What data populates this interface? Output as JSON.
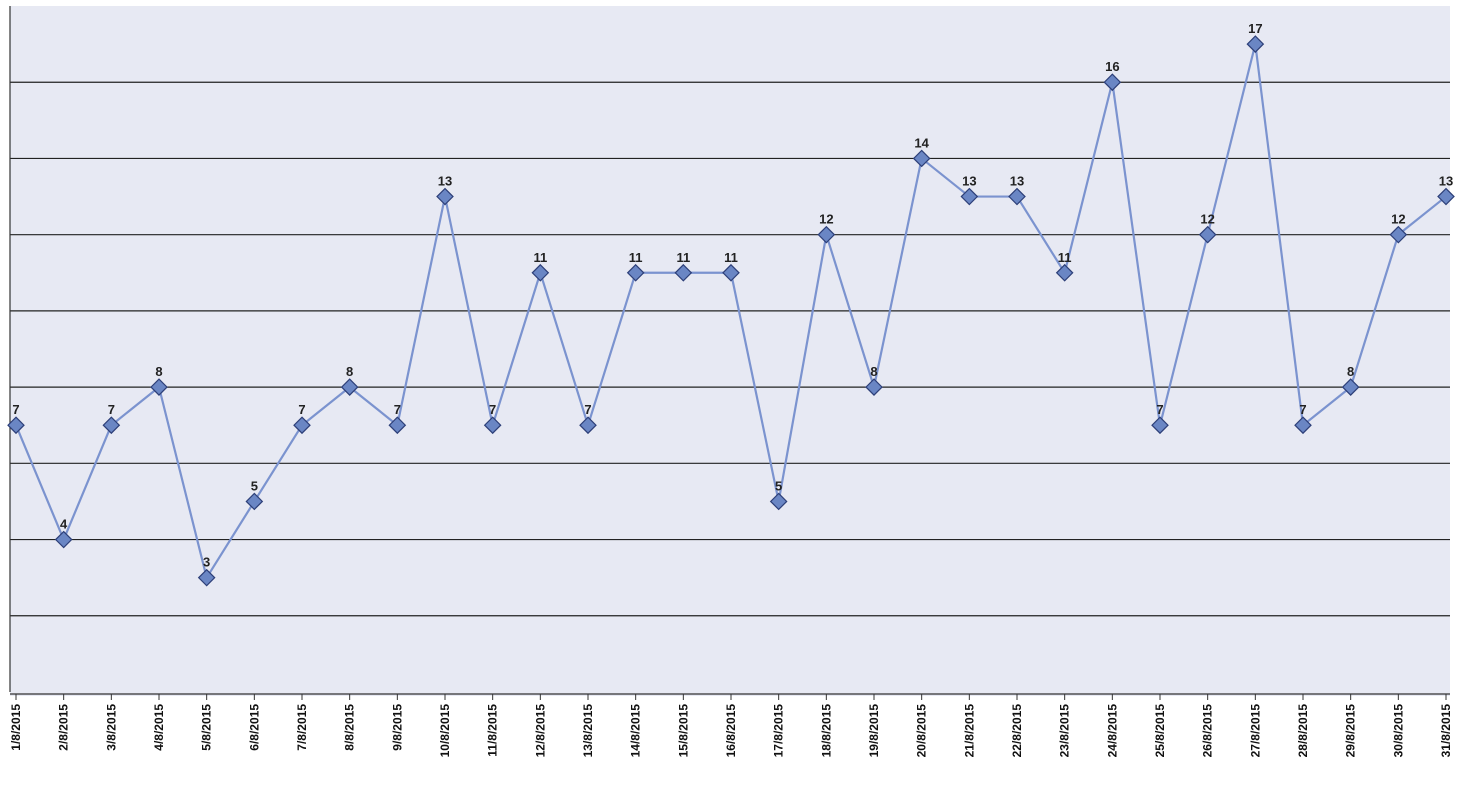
{
  "chart_data": {
    "type": "line",
    "title": "",
    "xlabel": "",
    "ylabel": "",
    "categories": [
      "1/8/2015",
      "2/8/2015",
      "3/8/2015",
      "4/8/2015",
      "5/8/2015",
      "6/8/2015",
      "7/8/2015",
      "8/8/2015",
      "9/8/2015",
      "10/8/2015",
      "11/8/2015",
      "12/8/2015",
      "13/8/2015",
      "14/8/2015",
      "15/8/2015",
      "16/8/2015",
      "17/8/2015",
      "18/8/2015",
      "19/8/2015",
      "20/8/2015",
      "21/8/2015",
      "22/8/2015",
      "23/8/2015",
      "24/8/2015",
      "25/8/2015",
      "26/8/2015",
      "27/8/2015",
      "28/8/2015",
      "29/8/2015",
      "30/8/2015",
      "31/8/2015"
    ],
    "series": [
      {
        "values": [
          7,
          4,
          7,
          8,
          3,
          5,
          7,
          8,
          7,
          13,
          7,
          11,
          7,
          11,
          11,
          11,
          5,
          12,
          8,
          14,
          13,
          13,
          11,
          16,
          7,
          12,
          17,
          7,
          8,
          12,
          13
        ],
        "labels": [
          "7",
          "4",
          "7",
          "8",
          "3",
          "5",
          "7",
          "8",
          "7",
          "13",
          "7",
          "11",
          "7",
          "11",
          "11",
          "11",
          "5",
          "12",
          "8",
          "14",
          "13",
          "13",
          "11",
          "16",
          "7",
          "12",
          "17",
          "7",
          "8",
          "12",
          "13"
        ]
      }
    ],
    "ylim": [
      0,
      18
    ],
    "y_gridlines_every": 2,
    "grid": true,
    "legend": "none",
    "colors": {
      "background": "#e7e9f3",
      "line": "#7b93cf",
      "marker_fill": "#6a86c4",
      "marker_stroke": "#2d3f78",
      "gridline": "#222222"
    }
  }
}
